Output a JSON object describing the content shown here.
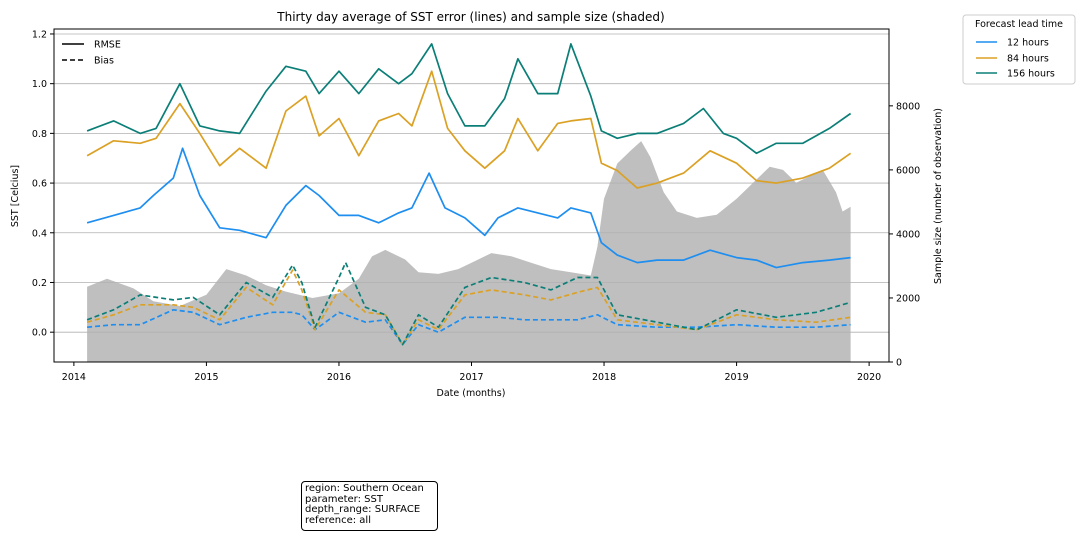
{
  "chart_data": {
    "type": "line",
    "title": "Thirty day average of SST error (lines) and sample size (shaded)",
    "xlabel": "Date (months)",
    "ylabel": "SST [Celcius]",
    "ylabel_right": "Sample size (number of observation)",
    "xlim": [
      2013.85,
      2020.15
    ],
    "ylim": [
      -0.12,
      1.22
    ],
    "ylim_right": [
      0,
      10400
    ],
    "x_ticks": [
      "2014",
      "2015",
      "2016",
      "2017",
      "2018",
      "2019",
      "2020"
    ],
    "y_ticks": [
      "0.0",
      "0.2",
      "0.4",
      "0.6",
      "0.8",
      "1.0",
      "1.2"
    ],
    "y_ticks_right": [
      "0",
      "2000",
      "4000",
      "6000",
      "8000"
    ],
    "grid": "horizontal",
    "style_legend": {
      "entries": [
        {
          "label": "RMSE",
          "style": "solid"
        },
        {
          "label": "Bias",
          "style": "dashed"
        }
      ],
      "placement": "upper-left"
    },
    "lead_legend": {
      "title": "Forecast lead time",
      "entries": [
        "12 hours",
        "84 hours",
        "156 hours"
      ],
      "placement": "outside-right"
    },
    "colors": {
      "12 hours": "#1e8ef0",
      "84 hours": "#dba125",
      "156 hours": "#0b7f77",
      "sample": "#bfbfbf"
    },
    "sample_size": {
      "x": [
        2014.1,
        2014.25,
        2014.45,
        2014.6,
        2014.8,
        2015.0,
        2015.15,
        2015.3,
        2015.45,
        2015.6,
        2015.8,
        2016.0,
        2016.15,
        2016.25,
        2016.35,
        2016.5,
        2016.6,
        2016.75,
        2016.9,
        2017.0,
        2017.15,
        2017.3,
        2017.45,
        2017.6,
        2017.75,
        2017.9,
        2017.95,
        2018.0,
        2018.1,
        2018.2,
        2018.28,
        2018.35,
        2018.45,
        2018.55,
        2018.7,
        2018.85,
        2019.0,
        2019.15,
        2019.25,
        2019.35,
        2019.45,
        2019.55,
        2019.65,
        2019.75,
        2019.8,
        2019.86
      ],
      "values": [
        2350,
        2600,
        2300,
        1900,
        1750,
        2100,
        2900,
        2700,
        2400,
        2200,
        2000,
        2150,
        2600,
        3300,
        3500,
        3200,
        2800,
        2750,
        2900,
        3100,
        3400,
        3300,
        3100,
        2900,
        2800,
        2700,
        3600,
        5100,
        6200,
        6600,
        6900,
        6400,
        5300,
        4700,
        4500,
        4600,
        5100,
        5700,
        6100,
        6000,
        5600,
        5800,
        6000,
        5300,
        4700,
        4850
      ]
    },
    "series": [
      {
        "name": "12 hours",
        "metric": "RMSE",
        "x": [
          2014.1,
          2014.3,
          2014.5,
          2014.6,
          2014.75,
          2014.82,
          2014.95,
          2015.1,
          2015.25,
          2015.45,
          2015.6,
          2015.75,
          2015.85,
          2016.0,
          2016.15,
          2016.3,
          2016.45,
          2016.55,
          2016.68,
          2016.8,
          2016.95,
          2017.1,
          2017.2,
          2017.35,
          2017.5,
          2017.65,
          2017.75,
          2017.9,
          2017.98,
          2018.1,
          2018.25,
          2018.4,
          2018.6,
          2018.8,
          2019.0,
          2019.15,
          2019.3,
          2019.5,
          2019.7,
          2019.86
        ],
        "values": [
          0.44,
          0.47,
          0.5,
          0.55,
          0.62,
          0.74,
          0.55,
          0.42,
          0.41,
          0.38,
          0.51,
          0.59,
          0.55,
          0.47,
          0.47,
          0.44,
          0.48,
          0.5,
          0.64,
          0.5,
          0.46,
          0.39,
          0.46,
          0.5,
          0.48,
          0.46,
          0.5,
          0.48,
          0.36,
          0.31,
          0.28,
          0.29,
          0.29,
          0.33,
          0.3,
          0.29,
          0.26,
          0.28,
          0.29,
          0.3
        ]
      },
      {
        "name": "84 hours",
        "metric": "RMSE",
        "x": [
          2014.1,
          2014.3,
          2014.5,
          2014.62,
          2014.8,
          2014.95,
          2015.1,
          2015.25,
          2015.45,
          2015.6,
          2015.75,
          2015.85,
          2016.0,
          2016.15,
          2016.3,
          2016.45,
          2016.55,
          2016.7,
          2016.82,
          2016.95,
          2017.1,
          2017.25,
          2017.35,
          2017.5,
          2017.65,
          2017.75,
          2017.9,
          2017.98,
          2018.1,
          2018.25,
          2018.4,
          2018.6,
          2018.8,
          2019.0,
          2019.15,
          2019.3,
          2019.5,
          2019.7,
          2019.86
        ],
        "values": [
          0.71,
          0.77,
          0.76,
          0.78,
          0.92,
          0.8,
          0.67,
          0.74,
          0.66,
          0.89,
          0.95,
          0.79,
          0.86,
          0.71,
          0.85,
          0.88,
          0.83,
          1.05,
          0.82,
          0.73,
          0.66,
          0.73,
          0.86,
          0.73,
          0.84,
          0.85,
          0.86,
          0.68,
          0.65,
          0.58,
          0.6,
          0.64,
          0.73,
          0.68,
          0.61,
          0.6,
          0.62,
          0.66,
          0.72
        ]
      },
      {
        "name": "156 hours",
        "metric": "RMSE",
        "x": [
          2014.1,
          2014.3,
          2014.5,
          2014.62,
          2014.8,
          2014.95,
          2015.1,
          2015.25,
          2015.45,
          2015.6,
          2015.75,
          2015.85,
          2016.0,
          2016.15,
          2016.3,
          2016.45,
          2016.55,
          2016.7,
          2016.82,
          2016.95,
          2017.1,
          2017.25,
          2017.35,
          2017.5,
          2017.65,
          2017.75,
          2017.9,
          2017.98,
          2018.1,
          2018.25,
          2018.4,
          2018.6,
          2018.75,
          2018.9,
          2019.0,
          2019.15,
          2019.3,
          2019.5,
          2019.7,
          2019.86
        ],
        "values": [
          0.81,
          0.85,
          0.8,
          0.82,
          1.0,
          0.83,
          0.81,
          0.8,
          0.97,
          1.07,
          1.05,
          0.96,
          1.05,
          0.96,
          1.06,
          1.0,
          1.04,
          1.16,
          0.96,
          0.83,
          0.83,
          0.94,
          1.1,
          0.96,
          0.96,
          1.16,
          0.95,
          0.81,
          0.78,
          0.8,
          0.8,
          0.84,
          0.9,
          0.8,
          0.78,
          0.72,
          0.76,
          0.76,
          0.82,
          0.88
        ]
      },
      {
        "name": "12 hours",
        "metric": "Bias",
        "x": [
          2014.1,
          2014.3,
          2014.5,
          2014.75,
          2014.9,
          2015.1,
          2015.3,
          2015.5,
          2015.65,
          2015.72,
          2015.82,
          2016.0,
          2016.2,
          2016.35,
          2016.48,
          2016.6,
          2016.75,
          2016.95,
          2017.2,
          2017.4,
          2017.6,
          2017.8,
          2017.95,
          2018.1,
          2018.4,
          2018.7,
          2019.0,
          2019.3,
          2019.6,
          2019.86
        ],
        "values": [
          0.02,
          0.03,
          0.03,
          0.09,
          0.08,
          0.03,
          0.06,
          0.08,
          0.08,
          0.07,
          0.01,
          0.08,
          0.04,
          0.05,
          -0.05,
          0.03,
          0.0,
          0.06,
          0.06,
          0.05,
          0.05,
          0.05,
          0.07,
          0.03,
          0.02,
          0.02,
          0.03,
          0.02,
          0.02,
          0.03
        ]
      },
      {
        "name": "84 hours",
        "metric": "Bias",
        "x": [
          2014.1,
          2014.3,
          2014.5,
          2014.75,
          2014.9,
          2015.1,
          2015.3,
          2015.5,
          2015.65,
          2015.72,
          2015.82,
          2016.0,
          2016.2,
          2016.35,
          2016.48,
          2016.6,
          2016.75,
          2016.95,
          2017.15,
          2017.4,
          2017.6,
          2017.8,
          2017.95,
          2018.1,
          2018.4,
          2018.7,
          2019.0,
          2019.3,
          2019.6,
          2019.86
        ],
        "values": [
          0.04,
          0.07,
          0.11,
          0.11,
          0.1,
          0.05,
          0.18,
          0.11,
          0.25,
          0.17,
          0.01,
          0.17,
          0.08,
          0.07,
          -0.05,
          0.05,
          0.01,
          0.15,
          0.17,
          0.15,
          0.13,
          0.16,
          0.18,
          0.05,
          0.03,
          0.01,
          0.07,
          0.05,
          0.04,
          0.06
        ]
      },
      {
        "name": "156 hours",
        "metric": "Bias",
        "x": [
          2014.1,
          2014.3,
          2014.5,
          2014.75,
          2014.9,
          2015.1,
          2015.3,
          2015.5,
          2015.65,
          2015.72,
          2015.82,
          2016.0,
          2016.05,
          2016.2,
          2016.35,
          2016.48,
          2016.6,
          2016.75,
          2016.95,
          2017.15,
          2017.4,
          2017.6,
          2017.8,
          2017.95,
          2018.1,
          2018.4,
          2018.7,
          2019.0,
          2019.3,
          2019.6,
          2019.86
        ],
        "values": [
          0.05,
          0.09,
          0.15,
          0.13,
          0.14,
          0.07,
          0.2,
          0.14,
          0.27,
          0.2,
          0.02,
          0.22,
          0.28,
          0.1,
          0.07,
          -0.05,
          0.07,
          0.02,
          0.18,
          0.22,
          0.2,
          0.17,
          0.22,
          0.22,
          0.07,
          0.04,
          0.01,
          0.09,
          0.06,
          0.08,
          0.12
        ]
      }
    ]
  },
  "info_box": {
    "lines": [
      "region: Southern Ocean",
      "parameter: SST",
      "depth_range: SURFACE",
      "reference: all"
    ]
  }
}
